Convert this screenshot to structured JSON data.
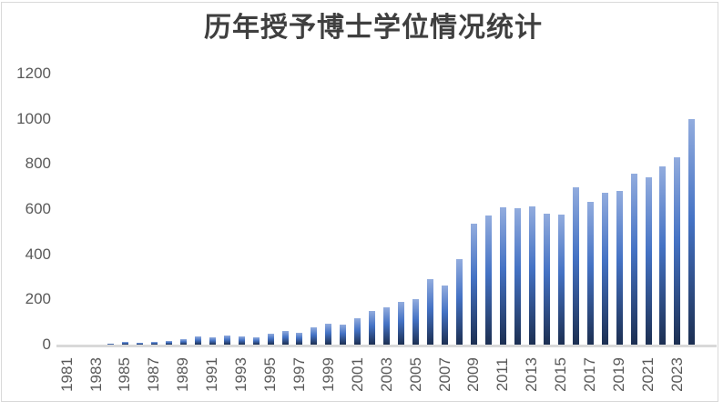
{
  "chart_data": {
    "type": "bar",
    "title": "历年授予博士学位情况统计",
    "xlabel": "",
    "ylabel": "",
    "categories": [
      1981,
      1982,
      1983,
      1984,
      1985,
      1986,
      1987,
      1988,
      1989,
      1990,
      1991,
      1992,
      1993,
      1994,
      1995,
      1996,
      1997,
      1998,
      1999,
      2000,
      2001,
      2002,
      2003,
      2004,
      2005,
      2006,
      2007,
      2008,
      2009,
      2010,
      2011,
      2012,
      2013,
      2014,
      2015,
      2016,
      2017,
      2018,
      2019,
      2020,
      2021,
      2022,
      2023,
      2024
    ],
    "values": [
      0,
      0,
      0,
      6,
      12,
      8,
      14,
      18,
      26,
      36,
      32,
      42,
      37,
      31,
      48,
      60,
      54,
      78,
      93,
      87,
      115,
      150,
      166,
      188,
      200,
      288,
      262,
      380,
      535,
      572,
      607,
      603,
      610,
      580,
      575,
      697,
      630,
      672,
      680,
      755,
      740,
      790,
      830,
      1000
    ],
    "x_tick_labels": [
      "1981",
      "1983",
      "1985",
      "1987",
      "1989",
      "1991",
      "1993",
      "1995",
      "1997",
      "1999",
      "2001",
      "2003",
      "2005",
      "2007",
      "2009",
      "2011",
      "2013",
      "2015",
      "2017",
      "2019",
      "2021",
      "2023"
    ],
    "y_ticks": [
      0,
      200,
      400,
      600,
      800,
      1000,
      1200
    ],
    "ylim": [
      0,
      1200
    ],
    "grid": false,
    "legend": "none",
    "colors": {
      "bar_gradient_top": "#92ACDE",
      "bar_gradient_mid": "#4472C4",
      "bar_gradient_bottom": "#1C2F52",
      "axis_line": "#D9D9D9",
      "tick_label": "#595959",
      "title": "#3F3F3F",
      "frame_border": "#D9D9D9"
    }
  }
}
